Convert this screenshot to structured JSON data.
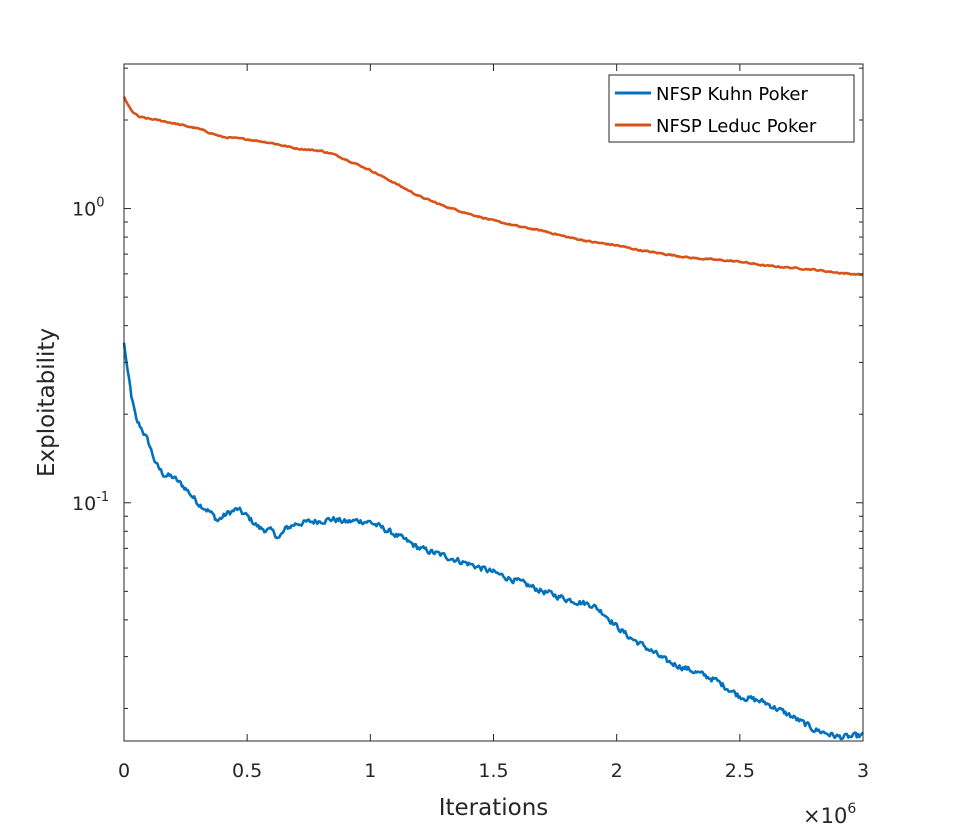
{
  "chart_data": {
    "type": "line",
    "title": "",
    "xlabel": "Iterations",
    "ylabel": "Exploitability",
    "x_multiplier_label": "×10",
    "x_multiplier_exponent": "6",
    "xlim": [
      0,
      3000000
    ],
    "ylim": [
      0.0155,
      3.1
    ],
    "yscale": "log",
    "xticks": [
      {
        "value": 0,
        "label": "0"
      },
      {
        "value": 500000,
        "label": "0.5"
      },
      {
        "value": 1000000,
        "label": "1"
      },
      {
        "value": 1500000,
        "label": "1.5"
      },
      {
        "value": 2000000,
        "label": "2"
      },
      {
        "value": 2500000,
        "label": "2.5"
      },
      {
        "value": 3000000,
        "label": "3"
      }
    ],
    "yticks": [
      {
        "value": 0.1,
        "base": "10",
        "exp": "-1"
      },
      {
        "value": 1,
        "base": "10",
        "exp": "0"
      }
    ],
    "grid": false,
    "legend_position": "top-right",
    "series": [
      {
        "name": "NFSP Kuhn Poker",
        "color": "#0072BD",
        "noise": 0.035,
        "x": [
          0,
          10000,
          30000,
          50000,
          70000,
          100000,
          130000,
          160000,
          200000,
          250000,
          300000,
          350000,
          380000,
          420000,
          460000,
          500000,
          550000,
          600000,
          630000,
          660000,
          700000,
          750000,
          800000,
          850000,
          900000,
          950000,
          1000000,
          1100000,
          1200000,
          1300000,
          1400000,
          1500000,
          1600000,
          1700000,
          1800000,
          1900000,
          1950000,
          2000000,
          2050000,
          2100000,
          2150000,
          2200000,
          2300000,
          2400000,
          2500000,
          2600000,
          2700000,
          2800000,
          2850000,
          2900000,
          2950000,
          3000000
        ],
        "y": [
          0.35,
          0.3,
          0.23,
          0.19,
          0.18,
          0.16,
          0.135,
          0.125,
          0.122,
          0.112,
          0.1,
          0.093,
          0.087,
          0.092,
          0.095,
          0.09,
          0.082,
          0.08,
          0.076,
          0.082,
          0.085,
          0.086,
          0.087,
          0.088,
          0.086,
          0.087,
          0.086,
          0.078,
          0.07,
          0.066,
          0.062,
          0.058,
          0.054,
          0.05,
          0.047,
          0.045,
          0.042,
          0.038,
          0.035,
          0.033,
          0.031,
          0.029,
          0.027,
          0.025,
          0.022,
          0.021,
          0.019,
          0.017,
          0.0165,
          0.016,
          0.016,
          0.0162
        ]
      },
      {
        "name": "NFSP Leduc Poker",
        "color": "#D95319",
        "noise": 0.008,
        "x": [
          0,
          10000,
          30000,
          60000,
          100000,
          150000,
          200000,
          300000,
          400000,
          500000,
          600000,
          700000,
          800000,
          850000,
          900000,
          1000000,
          1100000,
          1200000,
          1300000,
          1400000,
          1500000,
          1600000,
          1700000,
          1800000,
          1900000,
          2000000,
          2100000,
          2200000,
          2300000,
          2400000,
          2500000,
          2600000,
          2700000,
          2800000,
          2900000,
          3000000
        ],
        "y": [
          2.4,
          2.3,
          2.15,
          2.05,
          2.02,
          1.99,
          1.95,
          1.87,
          1.75,
          1.72,
          1.67,
          1.6,
          1.57,
          1.53,
          1.47,
          1.35,
          1.22,
          1.1,
          1.02,
          0.96,
          0.91,
          0.87,
          0.84,
          0.8,
          0.77,
          0.75,
          0.72,
          0.7,
          0.68,
          0.67,
          0.66,
          0.64,
          0.63,
          0.62,
          0.605,
          0.595
        ]
      }
    ]
  }
}
